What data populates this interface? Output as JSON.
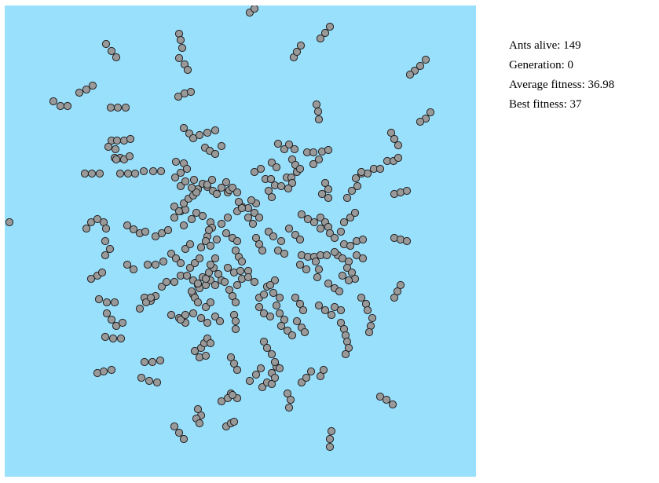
{
  "colors": {
    "arena": "#99e0fd",
    "ant_fill": "#999999",
    "ant_stroke": "#222222"
  },
  "arena": {
    "icon": "ant-swarm"
  },
  "stats": {
    "ants_alive": "Ants alive: 149",
    "generation": "Generation: 0",
    "average_fitness": "Average fitness: 36.98",
    "best_fitness": "Best fitness: 37"
  }
}
